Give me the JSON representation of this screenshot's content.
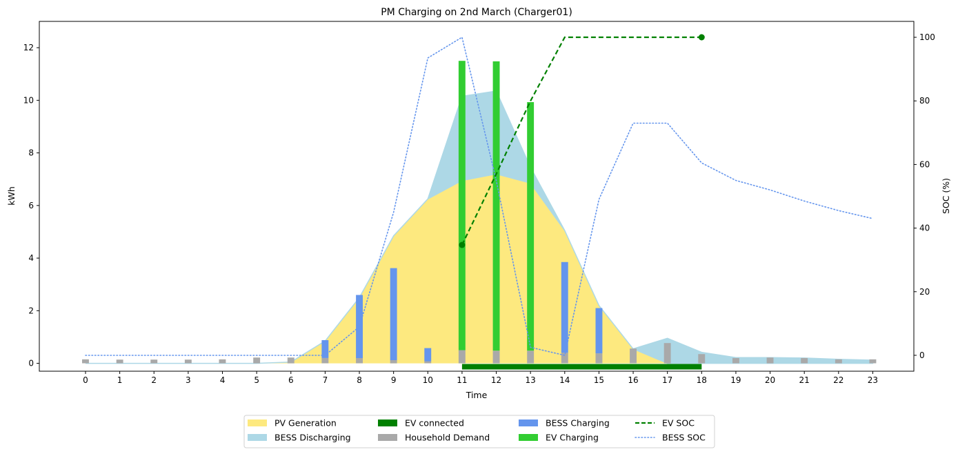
{
  "chart_data": {
    "type": "bar",
    "title": "PM Charging on 2nd March (Charger01)",
    "xlabel": "Time",
    "ylabel": "kWh",
    "y2label": "SOC (%)",
    "x": [
      0,
      1,
      2,
      3,
      4,
      5,
      6,
      7,
      8,
      9,
      10,
      11,
      12,
      13,
      14,
      15,
      16,
      17,
      18,
      19,
      20,
      21,
      22,
      23
    ],
    "xlim": [
      -1.35,
      24.2
    ],
    "ylim": [
      -0.3,
      13.0
    ],
    "y2lim": [
      -5.0,
      105.0
    ],
    "yticks": [
      0,
      2,
      4,
      6,
      8,
      10,
      12
    ],
    "y2ticks": [
      0,
      20,
      40,
      60,
      80,
      100
    ],
    "grid": false,
    "legend_position": "bottom-center",
    "colors": {
      "pv": "#fde97f",
      "bess_discharging": "#add8e6",
      "ev_connected": "#008000",
      "household": "#a9a9a9",
      "bess_charging": "#6495ed",
      "ev_charging": "#32cd32",
      "ev_soc": "#008000",
      "bess_soc": "#6495ed"
    },
    "series": [
      {
        "key": "pv",
        "name": "PV Generation",
        "kind": "area",
        "values": [
          0,
          0,
          0,
          0,
          0,
          0,
          0.05,
          0.85,
          2.5,
          4.85,
          6.25,
          6.95,
          7.2,
          6.85,
          5.05,
          2.2,
          0.55,
          0,
          0,
          0,
          0,
          0,
          0,
          0
        ]
      },
      {
        "key": "bess_discharging",
        "name": "BESS Discharging",
        "kind": "stacked-area",
        "values": [
          0,
          0,
          0,
          0,
          0,
          0,
          0,
          0,
          0,
          0,
          0,
          3.2,
          3.15,
          0.6,
          0,
          0,
          0,
          0.95,
          0.42,
          0.22,
          0.22,
          0.2,
          0.15,
          0.12
        ]
      },
      {
        "key": "ev_connected",
        "name": "EV connected",
        "kind": "span",
        "start": 11,
        "end": 18,
        "y": -0.13
      },
      {
        "key": "household",
        "name": "Household Demand",
        "kind": "bar",
        "values": [
          0.15,
          0.14,
          0.14,
          0.14,
          0.15,
          0.22,
          0.22,
          0.2,
          0.2,
          0.12,
          0.08,
          0.5,
          0.48,
          0.48,
          0.4,
          0.38,
          0.56,
          0.77,
          0.35,
          0.2,
          0.22,
          0.2,
          0.15,
          0.15
        ]
      },
      {
        "key": "bess_charging",
        "name": "BESS Charging",
        "kind": "bar-stacked",
        "values": [
          0,
          0,
          0,
          0,
          0,
          0,
          0,
          0.68,
          2.4,
          3.5,
          0.5,
          0,
          0,
          0,
          3.45,
          1.72,
          0,
          0,
          0,
          0,
          0,
          0,
          0,
          0
        ]
      },
      {
        "key": "ev_charging",
        "name": "EV Charging",
        "kind": "bar-stacked",
        "values": [
          0,
          0,
          0,
          0,
          0,
          0,
          0,
          0,
          0,
          0,
          0,
          11.0,
          11.0,
          9.45,
          0,
          0,
          0,
          0,
          0,
          0,
          0,
          0,
          0,
          0
        ]
      },
      {
        "key": "ev_soc",
        "name": "EV SOC",
        "kind": "line-secondary",
        "x": [
          11,
          12,
          13,
          14,
          18
        ],
        "values": [
          34.7,
          57,
          80,
          100,
          100
        ],
        "markers": [
          0,
          4
        ]
      },
      {
        "key": "bess_soc",
        "name": "BESS SOC",
        "kind": "line-secondary",
        "values": [
          0,
          0,
          0,
          0,
          0,
          0,
          0,
          0,
          9,
          45,
          93.5,
          100,
          55,
          2.5,
          0,
          49,
          73,
          73,
          60.5,
          55,
          52,
          48.5,
          45.5,
          43
        ]
      }
    ],
    "legend_order": [
      "pv",
      "bess_discharging",
      "ev_connected",
      "household",
      "bess_charging",
      "ev_charging",
      "ev_soc",
      "bess_soc"
    ]
  }
}
